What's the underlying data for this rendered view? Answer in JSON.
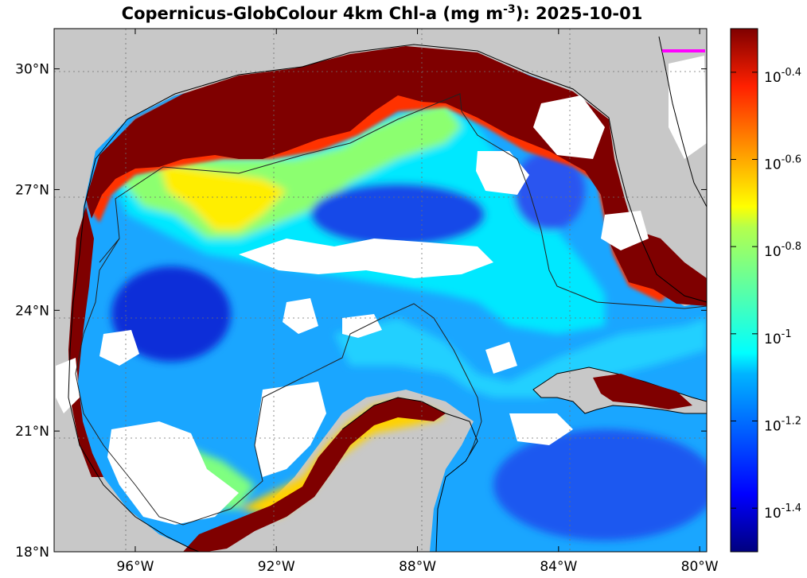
{
  "title": {
    "prefix": "Copernicus-GlobColour 4km Chl-a (mg m",
    "superscript": "-3",
    "suffix": "): 2025-10-01"
  },
  "colors": {
    "land": "#c8c8c8",
    "nodata": "#ffffff",
    "coast": "#000000",
    "boundary": "#222222",
    "marker": "#ff00ff"
  },
  "map": {
    "lon_range": [
      -98.3,
      -79.8
    ],
    "lat_range": [
      18,
      31
    ],
    "lon_ticks": [
      {
        "value": -96,
        "label": "96°W"
      },
      {
        "value": -92,
        "label": "92°W"
      },
      {
        "value": -88,
        "label": "88°W"
      },
      {
        "value": -84,
        "label": "84°W"
      },
      {
        "value": -80,
        "label": "80°W"
      }
    ],
    "lat_ticks": [
      {
        "value": 18,
        "label": "18°N"
      },
      {
        "value": 21,
        "label": "21°N"
      },
      {
        "value": 24,
        "label": "24°N"
      },
      {
        "value": 27,
        "label": "27°N"
      },
      {
        "value": 30,
        "label": "30°N"
      }
    ],
    "grid": "dotted"
  },
  "colorbar": {
    "scale": "log10",
    "range": [
      -1.5,
      -0.3
    ],
    "ticks": [
      {
        "value": -0.4,
        "base": "10",
        "exp": "-0.4"
      },
      {
        "value": -0.6,
        "base": "10",
        "exp": "-0.6"
      },
      {
        "value": -0.8,
        "base": "10",
        "exp": "-0.8"
      },
      {
        "value": -1.0,
        "base": "10",
        "exp": "-1"
      },
      {
        "value": -1.2,
        "base": "10",
        "exp": "-1.2"
      },
      {
        "value": -1.4,
        "base": "10",
        "exp": "-1.4"
      }
    ],
    "colormap": "jet"
  }
}
